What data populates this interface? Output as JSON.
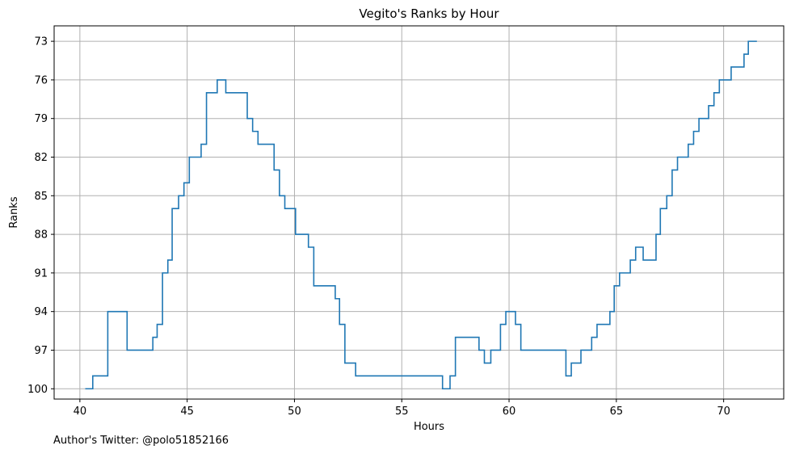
{
  "chart_data": {
    "type": "line",
    "drawstyle": "steps-post",
    "title": "Vegito's Ranks by Hour",
    "xlabel": "Hours",
    "ylabel": "Ranks",
    "xlim": [
      38.8,
      72.8
    ],
    "ylim": [
      100.8,
      71.8
    ],
    "y_inverted": true,
    "grid": true,
    "x_ticks": [
      40,
      45,
      50,
      55,
      60,
      65,
      70
    ],
    "y_ticks": [
      73,
      76,
      79,
      82,
      85,
      88,
      91,
      94,
      97,
      100
    ],
    "line_color": "#1f77b4",
    "series": [
      {
        "x": [
          40.25,
          40.6,
          41.1,
          41.3,
          42.2,
          43.4,
          43.6,
          43.85,
          44.1,
          44.3,
          44.6,
          44.85,
          45.1,
          45.65,
          45.9,
          46.4,
          46.8,
          47.8,
          48.05,
          48.3,
          49.05,
          49.3,
          49.55,
          50.05,
          50.65,
          50.9,
          51.9,
          52.1,
          52.35,
          52.85,
          56.9,
          57.25,
          57.5,
          58.6,
          58.85,
          59.15,
          59.6,
          59.85,
          60.3,
          60.55,
          62.65,
          62.9,
          63.35,
          63.85,
          64.1,
          64.7,
          64.9,
          65.15,
          65.65,
          65.9,
          66.25,
          66.85,
          67.05,
          67.35,
          67.6,
          67.85,
          68.35,
          68.6,
          68.85,
          69.3,
          69.55,
          69.8,
          70.35,
          70.95,
          71.15,
          71.55
        ],
        "y": [
          100,
          99,
          99,
          94,
          97,
          96,
          95,
          91,
          90,
          86,
          85,
          84,
          82,
          81,
          77,
          76,
          77,
          79,
          80,
          81,
          83,
          85,
          86,
          88,
          89,
          92,
          93,
          95,
          98,
          99,
          100,
          99,
          96,
          97,
          98,
          97,
          95,
          94,
          95,
          97,
          99,
          98,
          97,
          96,
          95,
          94,
          92,
          91,
          90,
          89,
          90,
          88,
          86,
          85,
          83,
          82,
          81,
          80,
          79,
          78,
          77,
          76,
          75,
          74,
          73,
          73
        ]
      }
    ]
  },
  "footer": {
    "text": "Author's Twitter: @polo51852166"
  }
}
